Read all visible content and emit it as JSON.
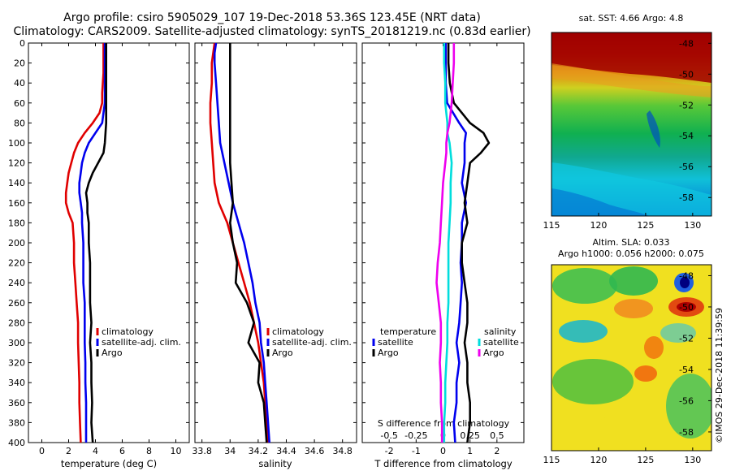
{
  "title": {
    "line1": "Argo profile: csiro 5905029_107 19-Dec-2018 53.36S 123.45E (NRT data)",
    "line2": "Climatology: CARS2009. Satellite-adjusted climatology: synTS_20181219.nc (0.83d earlier)"
  },
  "colors": {
    "climatology": "#e00000",
    "satellite": "#0000ee",
    "argo": "#000000",
    "t_satellite": "#0000ee",
    "s_satellite": "#00dddd",
    "s_argo": "#ee00ee"
  },
  "chart_data": [
    {
      "type": "line",
      "id": "temperature",
      "xlabel": "temperature (deg C)",
      "xlim": [
        -1,
        11
      ],
      "ylim": [
        0,
        400
      ],
      "xticks": [
        0,
        2,
        4,
        6,
        8,
        10
      ],
      "yticks": [
        0,
        20,
        40,
        60,
        80,
        100,
        120,
        140,
        160,
        180,
        200,
        220,
        240,
        260,
        280,
        300,
        320,
        340,
        360,
        380,
        400
      ],
      "legend": [
        "climatology",
        "satellite-adj. clim.",
        "Argo"
      ],
      "depth": [
        0,
        10,
        20,
        30,
        40,
        50,
        60,
        70,
        80,
        90,
        100,
        110,
        120,
        130,
        140,
        150,
        160,
        170,
        180,
        200,
        220,
        240,
        260,
        280,
        300,
        320,
        340,
        360,
        380,
        400
      ],
      "series": [
        {
          "name": "climatology",
          "values": [
            4.6,
            4.6,
            4.6,
            4.6,
            4.55,
            4.5,
            4.5,
            4.3,
            3.8,
            3.2,
            2.7,
            2.4,
            2.2,
            2.0,
            1.9,
            1.8,
            1.8,
            2.0,
            2.3,
            2.4,
            2.4,
            2.5,
            2.6,
            2.7,
            2.7,
            2.75,
            2.8,
            2.8,
            2.85,
            2.9
          ]
        },
        {
          "name": "satellite-adj. clim.",
          "values": [
            4.7,
            4.7,
            4.7,
            4.7,
            4.7,
            4.7,
            4.7,
            4.6,
            4.5,
            4.0,
            3.5,
            3.2,
            3.0,
            2.9,
            2.8,
            2.8,
            2.9,
            3.0,
            3.0,
            3.1,
            3.1,
            3.1,
            3.2,
            3.2,
            3.2,
            3.25,
            3.25,
            3.3,
            3.3,
            3.3
          ]
        },
        {
          "name": "Argo",
          "values": [
            4.8,
            4.8,
            4.8,
            4.8,
            4.8,
            4.8,
            4.8,
            4.8,
            4.8,
            4.75,
            4.7,
            4.6,
            4.2,
            3.8,
            3.5,
            3.3,
            3.4,
            3.4,
            3.5,
            3.5,
            3.6,
            3.6,
            3.6,
            3.7,
            3.6,
            3.7,
            3.7,
            3.75,
            3.7,
            3.8
          ]
        }
      ]
    },
    {
      "type": "line",
      "id": "salinity",
      "xlabel": "salinity",
      "xlim": [
        33.75,
        34.9
      ],
      "ylim": [
        0,
        400
      ],
      "xticks": [
        33.8,
        34,
        34.2,
        34.4,
        34.6,
        34.8
      ],
      "xticklabels": [
        "33.8",
        "34",
        "34.2",
        "34.4",
        "34.6",
        "34.8"
      ],
      "legend": [
        "climatology",
        "satellite-adj. clim.",
        "Argo"
      ],
      "depth": [
        0,
        10,
        20,
        40,
        60,
        80,
        100,
        120,
        140,
        160,
        180,
        200,
        220,
        240,
        260,
        280,
        300,
        320,
        340,
        360,
        380,
        400
      ],
      "series": [
        {
          "name": "climatology",
          "values": [
            33.89,
            33.88,
            33.87,
            33.87,
            33.86,
            33.86,
            33.87,
            33.88,
            33.89,
            33.92,
            33.98,
            34.02,
            34.06,
            34.1,
            34.14,
            34.17,
            34.2,
            34.22,
            34.24,
            34.25,
            34.26,
            34.27
          ]
        },
        {
          "name": "satellite-adj. clim.",
          "values": [
            33.9,
            33.89,
            33.89,
            33.9,
            33.91,
            33.92,
            33.93,
            33.96,
            33.99,
            34.02,
            34.06,
            34.1,
            34.13,
            34.16,
            34.18,
            34.21,
            34.22,
            34.24,
            34.25,
            34.26,
            34.27,
            34.28
          ]
        },
        {
          "name": "Argo",
          "values": [
            34.0,
            34.0,
            34.0,
            34.0,
            34.0,
            34.0,
            34.0,
            34.0,
            34.01,
            34.02,
            34.0,
            34.02,
            34.05,
            34.04,
            34.12,
            34.17,
            34.13,
            34.21,
            34.2,
            34.24,
            34.25,
            34.26
          ]
        }
      ]
    },
    {
      "type": "line",
      "id": "difference",
      "xlabel": "T difference from climatology",
      "x2label": "S difference from climatology",
      "xlim": [
        -3,
        3
      ],
      "ylim": [
        0,
        400
      ],
      "xticks": [
        -2,
        -1,
        0,
        1,
        2
      ],
      "xticklabels": [
        "-2",
        "-1",
        "0",
        "1",
        "2"
      ],
      "x2ticks": [
        -0.5,
        -0.25,
        0,
        0.25,
        0.5
      ],
      "x2ticklabels": [
        "-0.5",
        "-0.25",
        "0",
        "0.25",
        "0.5"
      ],
      "legend_left_title": "temperature",
      "legend_right_title": "salinity",
      "legend_left": [
        "satellite",
        "Argo"
      ],
      "legend_right": [
        "satellite",
        "Argo"
      ],
      "depth": [
        0,
        20,
        40,
        60,
        80,
        90,
        100,
        110,
        120,
        140,
        160,
        180,
        200,
        220,
        240,
        260,
        280,
        300,
        320,
        340,
        360,
        380,
        400
      ],
      "series": [
        {
          "name": "T satellite",
          "values": [
            0.1,
            0.1,
            0.1,
            0.15,
            0.6,
            0.85,
            0.8,
            0.8,
            0.8,
            0.7,
            0.85,
            0.7,
            0.7,
            0.65,
            0.7,
            0.65,
            0.6,
            0.5,
            0.6,
            0.5,
            0.5,
            0.4,
            0.45
          ]
        },
        {
          "name": "T Argo",
          "values": [
            0.2,
            0.2,
            0.25,
            0.4,
            1.0,
            1.5,
            1.7,
            1.4,
            1.0,
            0.9,
            0.8,
            0.9,
            0.7,
            0.7,
            0.8,
            0.9,
            0.9,
            0.8,
            0.9,
            0.9,
            1.0,
            1.0,
            0.9
          ]
        },
        {
          "name": "S satellite",
          "values": [
            0.01,
            0.01,
            0.02,
            0.02,
            0.04,
            0.04,
            0.06,
            0.07,
            0.08,
            0.07,
            0.07,
            0.06,
            0.05,
            0.05,
            0.05,
            0.05,
            0.04,
            0.04,
            0.03,
            0.02,
            0.02,
            0.01,
            0.01
          ]
        },
        {
          "name": "S Argo",
          "values": [
            0.1,
            0.1,
            0.09,
            0.08,
            0.06,
            0.04,
            0.03,
            0.03,
            0.02,
            0.0,
            -0.01,
            -0.02,
            -0.03,
            -0.05,
            -0.06,
            -0.04,
            -0.02,
            -0.02,
            -0.03,
            -0.02,
            -0.02,
            -0.01,
            -0.01
          ]
        }
      ]
    },
    {
      "type": "heatmap",
      "id": "sst",
      "title": "sat. SST: 4.66 Argo: 4.8",
      "xlim": [
        115,
        132
      ],
      "ylim": [
        -59.2,
        -47.3
      ],
      "xticks": [
        115,
        120,
        125,
        130
      ],
      "yticks": [
        -48,
        -50,
        -52,
        -54,
        -56,
        -58
      ]
    },
    {
      "type": "heatmap",
      "id": "sla",
      "title_line1": "Altim. SLA: 0.033",
      "title_line2": "Argo h1000: 0.056 h2000: 0.075",
      "xlim": [
        115,
        132
      ],
      "ylim": [
        -59.2,
        -47.3
      ],
      "xticks": [
        115,
        120,
        125,
        130
      ],
      "yticks": [
        -48,
        -50,
        -52,
        -54,
        -56,
        -58
      ]
    }
  ],
  "watermark": "©IMOS 29-Dec-2018 11:39:59"
}
